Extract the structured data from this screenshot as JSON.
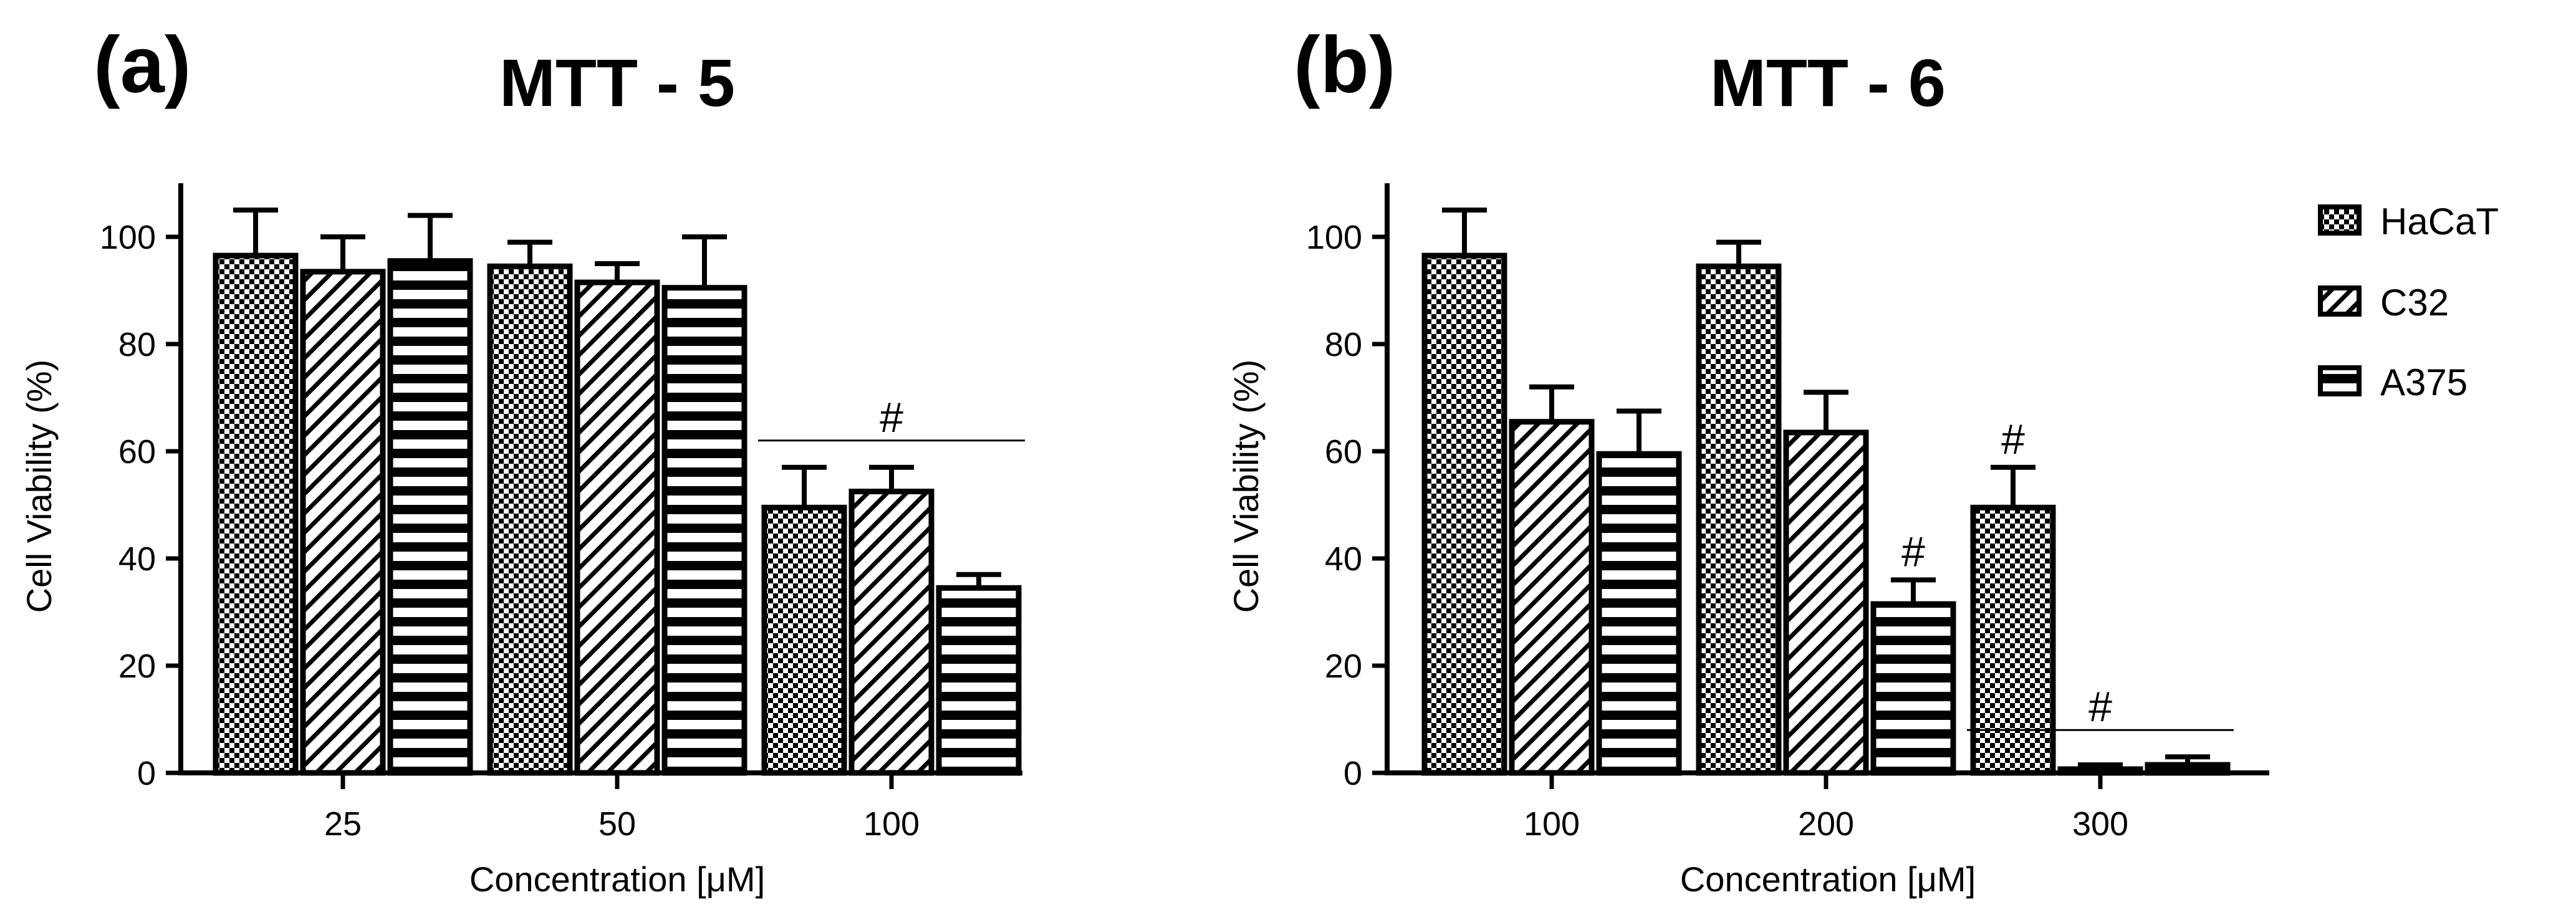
{
  "figure": {
    "legend": [
      {
        "series": "HaCaT",
        "label": "HaCaT",
        "pattern": "checker"
      },
      {
        "series": "C32",
        "label": "C32",
        "pattern": "diagonal"
      },
      {
        "series": "A375",
        "label": "A375",
        "pattern": "horizontal"
      }
    ]
  },
  "chart_data": [
    {
      "id": "a",
      "type": "bar",
      "panel_tag": "(a)",
      "title": "MTT - 5",
      "xlabel_prefix": "Concentration [",
      "xlabel_unit": "μM",
      "xlabel_suffix": "]",
      "ylabel": "Cell Viability (%)",
      "ylim": [
        0,
        110
      ],
      "yticks": [
        "0",
        "20",
        "40",
        "60",
        "80",
        "100"
      ],
      "categories": [
        "25",
        "50",
        "100"
      ],
      "series": [
        {
          "name": "HaCaT",
          "values": [
            96.5,
            94.5,
            49.5
          ],
          "errors": [
            8.5,
            4.5,
            7.5
          ]
        },
        {
          "name": "C32",
          "values": [
            93.5,
            91.5,
            52.5
          ],
          "errors": [
            6.5,
            3.5,
            4.5
          ]
        },
        {
          "name": "A375",
          "values": [
            95.5,
            90.5,
            34.5
          ],
          "errors": [
            8.5,
            9.5,
            2.5
          ]
        }
      ],
      "annotations": [
        {
          "text": "#",
          "type": "bracket",
          "category_index": 2,
          "y": 62
        }
      ]
    },
    {
      "id": "b",
      "type": "bar",
      "panel_tag": "(b)",
      "title": "MTT - 6",
      "xlabel_prefix": "Concentration [",
      "xlabel_unit": "μM",
      "xlabel_suffix": "]",
      "ylabel": "Cell Viability (%)",
      "ylim": [
        0,
        110
      ],
      "yticks": [
        "0",
        "20",
        "40",
        "60",
        "80",
        "100"
      ],
      "categories": [
        "100",
        "200",
        "300"
      ],
      "series": [
        {
          "name": "HaCaT",
          "values": [
            96.5,
            94.5,
            49.5
          ],
          "errors": [
            8.5,
            4.5,
            7.5
          ]
        },
        {
          "name": "C32",
          "values": [
            65.5,
            63.5,
            0.5
          ],
          "errors": [
            6.5,
            7.5,
            1.0
          ]
        },
        {
          "name": "A375",
          "values": [
            59.5,
            31.5,
            1.5
          ],
          "errors": [
            8.0,
            4.5,
            1.5
          ]
        }
      ],
      "annotations": [
        {
          "text": "#",
          "type": "bar",
          "category_index": 1,
          "series_index": 2
        },
        {
          "text": "#",
          "type": "bar",
          "category_index": 2,
          "series_index": 0
        },
        {
          "text": "#",
          "type": "bracket",
          "category_index": 2,
          "y": 8
        }
      ]
    }
  ]
}
